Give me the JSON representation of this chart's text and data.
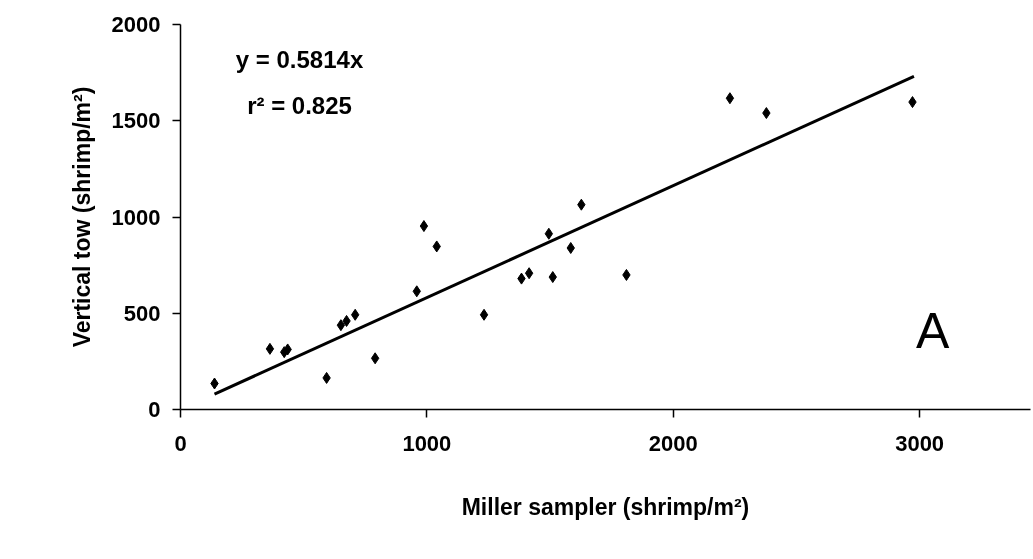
{
  "chart_data": {
    "type": "scatter",
    "xlabel": "Miller sampler (shrimp/m²)",
    "ylabel": "Vertical tow (shrimp/m²)",
    "annotations": [
      "y = 0.5814x",
      "r² = 0.825",
      "A"
    ],
    "xlim": [
      0,
      3450
    ],
    "ylim": [
      0,
      2000
    ],
    "xticks": [
      0,
      1000,
      2000,
      3000
    ],
    "yticks": [
      0,
      500,
      1000,
      1500,
      2000
    ],
    "grid": false,
    "series": [
      {
        "marker": "diamond",
        "color": "#000000",
        "x": [
          138,
          363,
          421,
          435,
          593,
          651,
          674,
          709,
          790,
          959,
          988,
          1040,
          1232,
          1384,
          1415,
          1495,
          1511,
          1584,
          1627,
          1810,
          2230,
          2378,
          2971
        ],
        "values": [
          135,
          315,
          298,
          312,
          164,
          438,
          460,
          492,
          266,
          614,
          953,
          847,
          492,
          680,
          708,
          913,
          688,
          839,
          1064,
          699,
          1617,
          1540,
          1597
        ]
      },
      {
        "type": "line",
        "color": "#000000",
        "line_style": "solid",
        "x": [
          138,
          2977
        ],
        "values": [
          80,
          1731
        ]
      }
    ]
  }
}
